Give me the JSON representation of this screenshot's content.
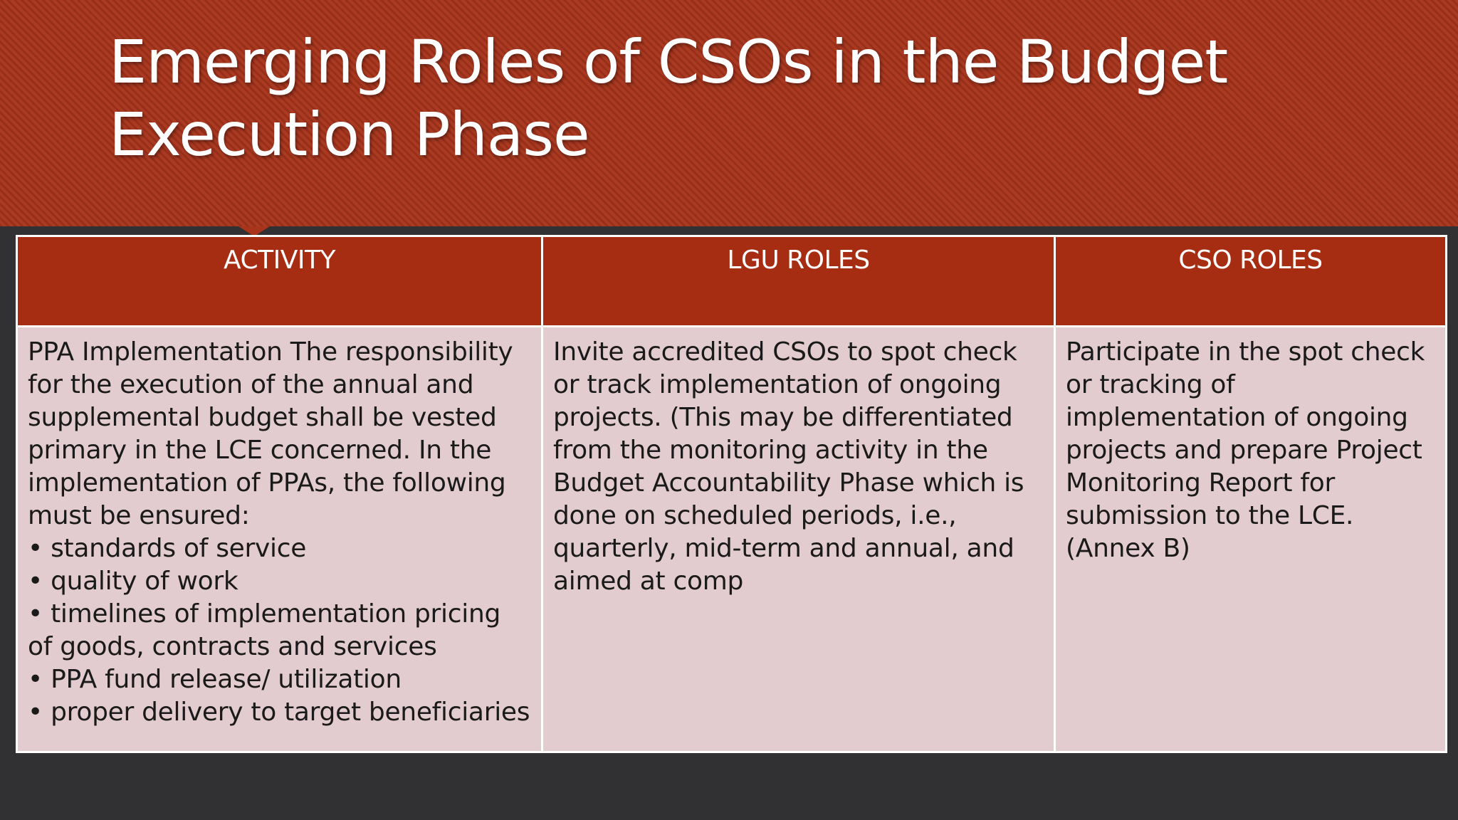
{
  "slide": {
    "title": "Emerging Roles of CSOs in the Budget Execution Phase",
    "colors": {
      "header": "#a8341c",
      "table_header": "#a62d12",
      "table_body": "#e3cccf",
      "background": "#313133"
    }
  },
  "table": {
    "headers": [
      "ACTIVITY",
      "LGU ROLES",
      "CSO ROLES"
    ],
    "activity": {
      "text": "PPA Implementation The responsibility for the execution of the annual and supplemental budget shall be vested primary in the LCE concerned. In the implementation of PPAs, the following must be ensured:",
      "bullets": [
        "standards of service",
        "quality of work",
        "timelines of implementation pricing of goods, contracts and services",
        "PPA fund release/ utilization",
        "proper delivery to target beneficiaries"
      ]
    },
    "lgu_roles": "Invite accredited CSOs to spot check or track implementation of ongoing projects. (This may be differentiated from the monitoring activity in the Budget Accountability Phase which is done on scheduled periods, i.e., quarterly, mid-term and annual, and aimed at comp",
    "cso_roles": "Participate in the spot check or tracking of implementation of ongoing projects and prepare Project Monitoring Report for submission to the LCE. (Annex B)"
  }
}
